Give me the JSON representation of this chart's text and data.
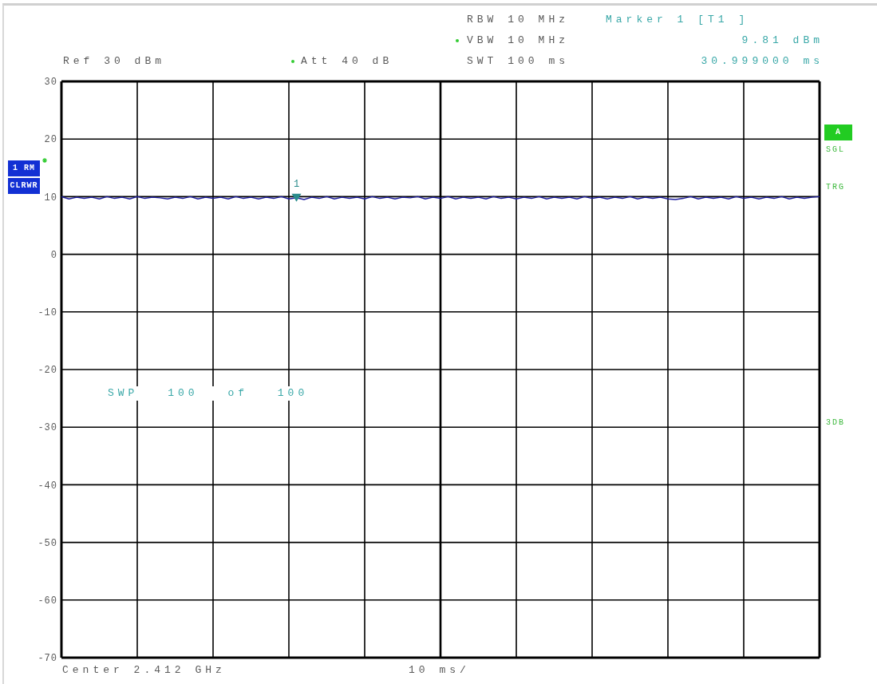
{
  "chart_data": {
    "type": "line",
    "categories": [
      null,
      null,
      null,
      null,
      null,
      null,
      null,
      null,
      null,
      null,
      null,
      null,
      null,
      null,
      null,
      null,
      null,
      null,
      null,
      null,
      null,
      null,
      null,
      null,
      null,
      null,
      null,
      null,
      null,
      null,
      null,
      null,
      null,
      null,
      null,
      null,
      null,
      null,
      null,
      null,
      null,
      null,
      null,
      null,
      null,
      null,
      null,
      null,
      null,
      null,
      null,
      null,
      null,
      null,
      null,
      null,
      null,
      null,
      null,
      null,
      null,
      null,
      null,
      null,
      null,
      null,
      null,
      null,
      null,
      null,
      null,
      null,
      null,
      null,
      null,
      null,
      null,
      null,
      null,
      null,
      null,
      null,
      null,
      null,
      null,
      null,
      null,
      null,
      null,
      null,
      null,
      null,
      null,
      null,
      null,
      null,
      null,
      null,
      null,
      null,
      null
    ],
    "series": [
      {
        "color": "#1f1f9e",
        "values": [
          10.0,
          9.6,
          9.9,
          9.7,
          9.9,
          9.6,
          10.0,
          9.7,
          9.9,
          9.6,
          10.0,
          9.7,
          9.9,
          9.8,
          9.6,
          9.9,
          9.7,
          10.0,
          9.6,
          9.9,
          9.7,
          9.9,
          9.6,
          10.0,
          9.7,
          9.9,
          9.6,
          9.9,
          9.7,
          10.0,
          9.6,
          9.81,
          9.5,
          9.9,
          9.7,
          10.0,
          9.6,
          9.9,
          9.7,
          9.9,
          9.6,
          10.0,
          9.7,
          9.9,
          9.6,
          9.9,
          9.8,
          10.0,
          9.6,
          9.9,
          9.7,
          10.0,
          9.6,
          9.9,
          9.7,
          9.9,
          9.6,
          10.0,
          9.7,
          9.9,
          9.6,
          9.9,
          9.7,
          10.0,
          9.6,
          9.9,
          9.7,
          9.9,
          9.6,
          10.0,
          9.7,
          9.9,
          9.6,
          9.9,
          9.7,
          10.0,
          9.6,
          9.9,
          9.7,
          9.9,
          9.6,
          9.5,
          9.7,
          10.0,
          9.6,
          9.9,
          9.7,
          9.9,
          9.6,
          10.0,
          9.7,
          9.9,
          9.6,
          9.9,
          9.7,
          10.0,
          9.6,
          9.9,
          9.7,
          9.9,
          10.0
        ]
      },
      {
        "type": "scatter",
        "name": "1",
        "color": "#2a8c8c",
        "marker": "triangle",
        "values": [
          null,
          null,
          null,
          null,
          null,
          null,
          null,
          null,
          null,
          null,
          null,
          null,
          null,
          null,
          null,
          null,
          null,
          null,
          null,
          null,
          null,
          null,
          null,
          null,
          null,
          null,
          null,
          null,
          null,
          null,
          null,
          9.81,
          null,
          null,
          null,
          null,
          null,
          null,
          null,
          null,
          null,
          null,
          null,
          null,
          null,
          null,
          null,
          null,
          null,
          null,
          null,
          null,
          null,
          null,
          null,
          null,
          null,
          null,
          null,
          null,
          null,
          null,
          null,
          null,
          null,
          null,
          null,
          null,
          null,
          null,
          null,
          null,
          null,
          null,
          null,
          null,
          null,
          null,
          null,
          null,
          null,
          null,
          null,
          null,
          null,
          null,
          null,
          null,
          null,
          null,
          null,
          null,
          null,
          null,
          null,
          null,
          null,
          null,
          null,
          null,
          null
        ]
      }
    ],
    "ylim": [
      -70,
      30
    ],
    "yticks": [
      30,
      20,
      10,
      0,
      -10,
      -20,
      -30,
      -40,
      -50,
      -60,
      -70
    ],
    "grid": true,
    "annotations": [
      "Ref 30 dBm",
      "Att 40 dB",
      "RBW 10 MHz",
      "VBW 10 MHz",
      "SWT 100 ms",
      "Marker 1 [T1 ]",
      "9.81 dBm",
      "30.999000 ms",
      "1 RM",
      "CLRWR",
      "A",
      "SGL",
      "TRG",
      "3DB",
      "SWP 100 of 100",
      "Center 2.412 GHz",
      "10 ms/"
    ]
  }
}
